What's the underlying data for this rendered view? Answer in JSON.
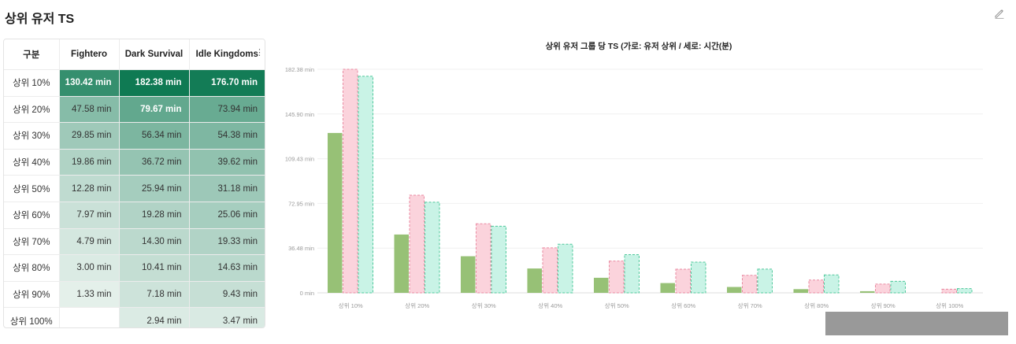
{
  "page": {
    "title": "상위 유저 TS",
    "edit_icon": "edit-icon"
  },
  "table": {
    "headers": [
      "구분",
      "Fightero",
      "Dark Survival",
      "Idle Kingdoms"
    ],
    "menu_icon": "kebab-menu-icon",
    "rows": [
      {
        "label": "상위 10%",
        "values": [
          "130.42 min",
          "182.38 min",
          "176.70 min"
        ]
      },
      {
        "label": "상위 20%",
        "values": [
          "47.58 min",
          "79.67 min",
          "73.94 min"
        ]
      },
      {
        "label": "상위 30%",
        "values": [
          "29.85 min",
          "56.34 min",
          "54.38 min"
        ]
      },
      {
        "label": "상위 40%",
        "values": [
          "19.86 min",
          "36.72 min",
          "39.62 min"
        ]
      },
      {
        "label": "상위 50%",
        "values": [
          "12.28 min",
          "25.94 min",
          "31.18 min"
        ]
      },
      {
        "label": "상위 60%",
        "values": [
          "7.97 min",
          "19.28 min",
          "25.06 min"
        ]
      },
      {
        "label": "상위 70%",
        "values": [
          "4.79 min",
          "14.30 min",
          "19.33 min"
        ]
      },
      {
        "label": "상위 80%",
        "values": [
          "3.00 min",
          "10.41 min",
          "14.63 min"
        ]
      },
      {
        "label": "상위 90%",
        "values": [
          "1.33 min",
          "7.18 min",
          "9.43 min"
        ]
      },
      {
        "label": "상위 100%",
        "values": [
          "",
          "2.94 min",
          "3.47 min"
        ]
      }
    ],
    "heat_colors": {
      "max": "#0f7a53",
      "min": "#f3f8f5"
    }
  },
  "chart_data": {
    "type": "bar",
    "title": "상위 유저 그룹 당 TS (가로: 유저 상위 / 세로: 시간(분)",
    "xlabel": "",
    "ylabel": "",
    "categories": [
      "상위 10%",
      "상위 20%",
      "상위 30%",
      "상위 40%",
      "상위 50%",
      "상위 60%",
      "상위 70%",
      "상위 80%",
      "상위 90%",
      "상위 100%"
    ],
    "series": [
      {
        "values": [
          130.42,
          47.58,
          29.85,
          19.86,
          12.28,
          7.97,
          4.79,
          3.0,
          1.33,
          null
        ],
        "color": "#97c176",
        "style": "solid"
      },
      {
        "values": [
          182.38,
          79.67,
          56.34,
          36.72,
          25.94,
          19.28,
          14.3,
          10.41,
          7.18,
          2.94
        ],
        "color": "#fbd3dc",
        "stroke": "#e98aa1",
        "style": "dashed"
      },
      {
        "values": [
          176.7,
          73.94,
          54.38,
          39.62,
          31.18,
          25.06,
          19.33,
          14.63,
          9.43,
          3.47
        ],
        "color": "#c9f3e6",
        "stroke": "#4fc89b",
        "style": "dashed"
      }
    ],
    "y_ticks": [
      {
        "value": 0,
        "label": "0 min"
      },
      {
        "value": 36.48,
        "label": "36.48 min"
      },
      {
        "value": 72.95,
        "label": "72.95 min"
      },
      {
        "value": 109.43,
        "label": "109.43 min"
      },
      {
        "value": 145.9,
        "label": "145.90 min"
      },
      {
        "value": 182.38,
        "label": "182.38 min"
      }
    ],
    "ylim": [
      0,
      182.38
    ],
    "grid": true,
    "legend": "none"
  }
}
